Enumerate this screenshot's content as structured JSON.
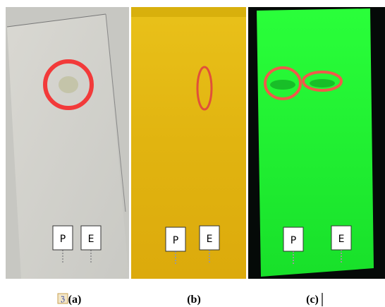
{
  "panels": [
    {
      "label": "(a)",
      "markers": [
        "P",
        "E"
      ]
    },
    {
      "label": "(b)",
      "markers": [
        "P",
        "E"
      ]
    },
    {
      "label": "(c)",
      "markers": [
        "P",
        "E"
      ]
    }
  ]
}
